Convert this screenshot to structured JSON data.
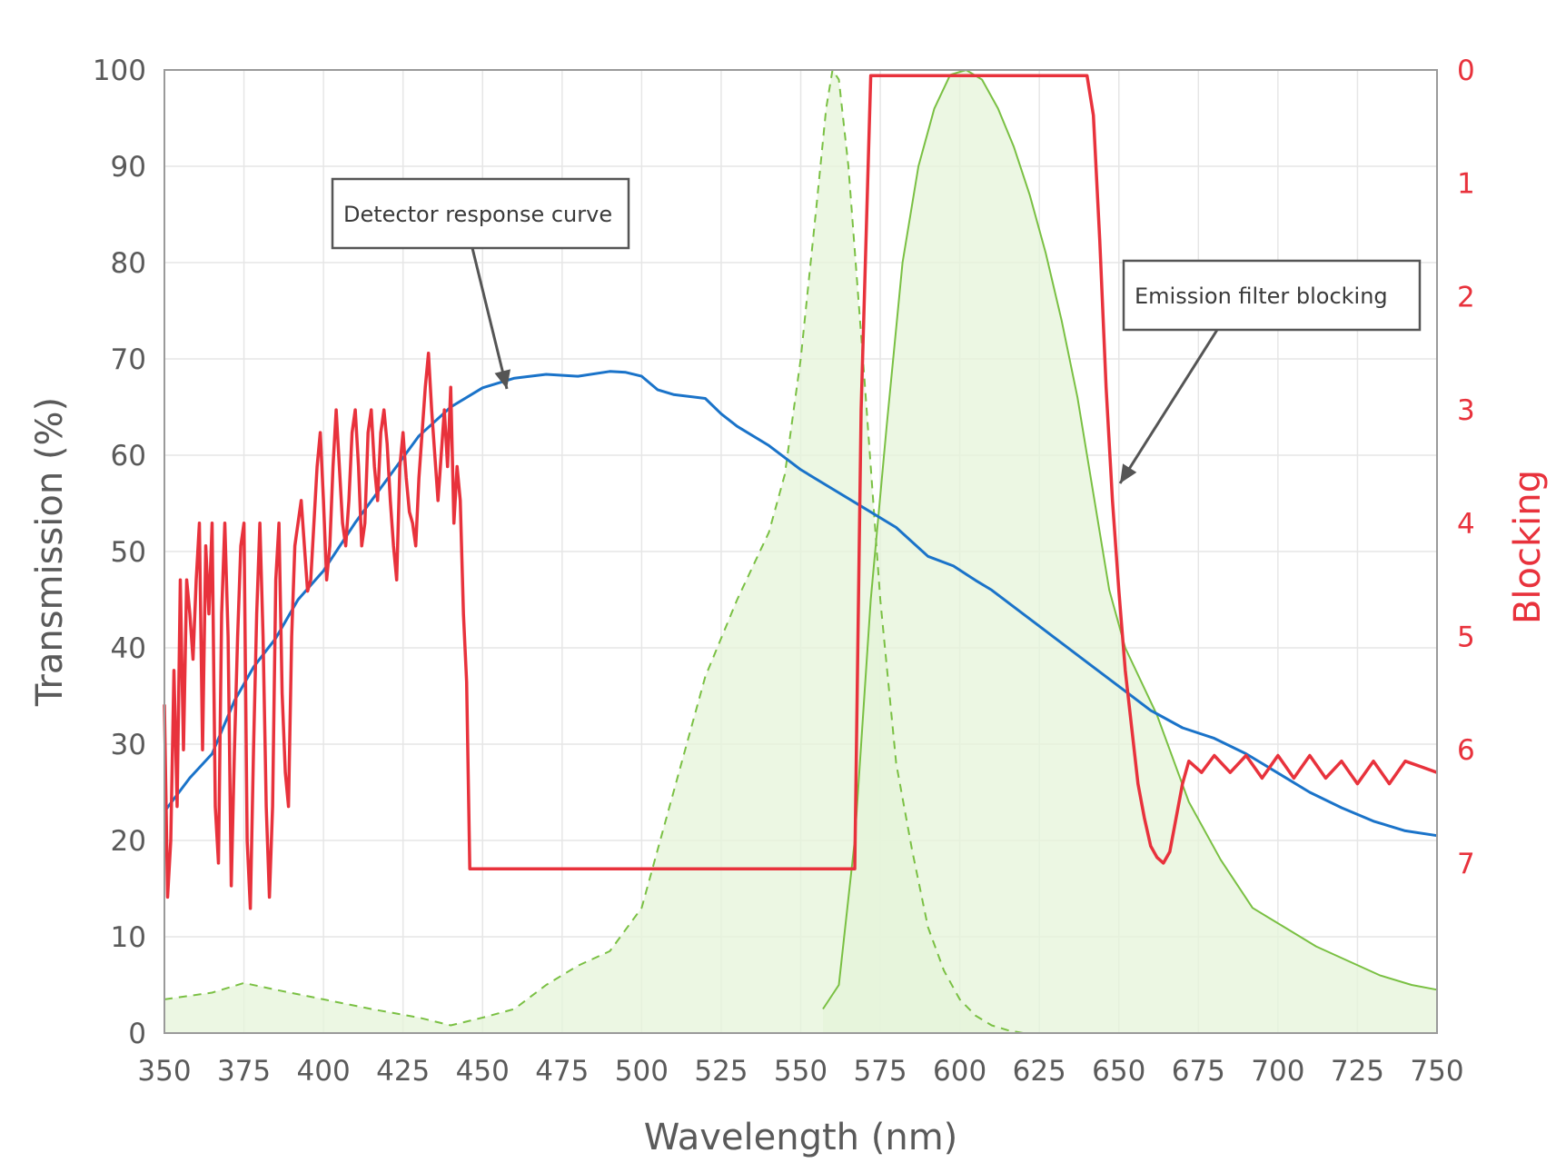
{
  "chart_data": {
    "type": "line",
    "xlabel": "Wavelength (nm)",
    "ylabel": "Transmission (%)",
    "y2label": "Blocking",
    "xlim": [
      350,
      750
    ],
    "ylim": [
      0,
      100
    ],
    "y2lim": [
      0,
      8.5
    ],
    "y2_inverted": true,
    "x_ticks": [
      "350",
      "375",
      "400",
      "425",
      "450",
      "475",
      "500",
      "525",
      "550",
      "575",
      "600",
      "625",
      "650",
      "675",
      "700",
      "725",
      "750"
    ],
    "y_ticks": [
      "0",
      "10",
      "20",
      "30",
      "40",
      "50",
      "60",
      "70",
      "80",
      "90",
      "100"
    ],
    "y2_ticks": [
      "0",
      "1",
      "2",
      "3",
      "4",
      "5",
      "6",
      "7"
    ],
    "grid": true,
    "series": [
      {
        "id": "excitation",
        "color": "#7ac043",
        "style": "dashed",
        "fill": "#e6f4d9",
        "axis": "left",
        "x": [
          350,
          365,
          375,
          385,
          400,
          415,
          430,
          440,
          450,
          460,
          470,
          480,
          490,
          500,
          510,
          520,
          530,
          540,
          545,
          550,
          555,
          558,
          560,
          562,
          565,
          570,
          575,
          580,
          585,
          590,
          595,
          600,
          605,
          610,
          615,
          620
        ],
        "y": [
          3.5,
          4.2,
          5.2,
          4.5,
          3.5,
          2.5,
          1.6,
          0.8,
          1.6,
          2.5,
          5,
          7,
          8.5,
          13,
          25,
          37,
          45,
          52,
          58,
          70,
          86,
          96,
          100,
          99,
          90,
          68,
          45,
          28,
          19,
          11,
          6.5,
          3.5,
          1.8,
          0.8,
          0.3,
          0
        ]
      },
      {
        "id": "emission",
        "color": "#7ac043",
        "style": "solid",
        "fill": "#e6f4d9",
        "axis": "left",
        "x": [
          557,
          562,
          567,
          572,
          577,
          582,
          587,
          592,
          597,
          602,
          607,
          612,
          617,
          622,
          627,
          632,
          637,
          642,
          647,
          652,
          662,
          672,
          682,
          692,
          702,
          712,
          722,
          732,
          742,
          750
        ],
        "y": [
          2.5,
          5,
          20,
          45,
          63,
          80,
          90,
          96,
          99.5,
          100,
          99,
          96,
          92,
          87,
          81,
          74,
          66,
          56,
          46,
          40,
          33,
          24,
          18,
          13,
          11,
          9,
          7.5,
          6,
          5,
          4.5
        ]
      },
      {
        "id": "detector-response",
        "name": "Detector response curve",
        "color": "#1a73c9",
        "style": "solid",
        "axis": "left",
        "x": [
          350,
          358,
          365,
          372,
          378,
          385,
          392,
          400,
          410,
          420,
          430,
          440,
          450,
          460,
          470,
          480,
          490,
          495,
          500,
          505,
          510,
          520,
          525,
          530,
          540,
          550,
          560,
          570,
          580,
          590,
          598,
          605,
          610,
          620,
          630,
          640,
          650,
          660,
          670,
          680,
          690,
          700,
          710,
          720,
          730,
          740,
          750
        ],
        "y": [
          23,
          26.5,
          29,
          34.5,
          38,
          41,
          45,
          48,
          53,
          57.5,
          62,
          65,
          67,
          68,
          68.4,
          68.2,
          68.7,
          68.6,
          68.2,
          66.8,
          66.3,
          65.9,
          64.3,
          63,
          61,
          58.5,
          56.5,
          54.5,
          52.5,
          49.5,
          48.5,
          47,
          46,
          43.5,
          41,
          38.5,
          36,
          33.5,
          31.7,
          30.6,
          29,
          27,
          25,
          23.4,
          22,
          21,
          20.5
        ]
      },
      {
        "id": "emission-filter-blocking",
        "name": "Emission filter blocking",
        "color": "#e8323c",
        "style": "solid",
        "axis": "right",
        "x": [
          350,
          351,
          352,
          353,
          354,
          355,
          356,
          357,
          358,
          359,
          360,
          361,
          362,
          363,
          364,
          365,
          366,
          367,
          368,
          369,
          370,
          371,
          372,
          373,
          374,
          375,
          376,
          377,
          378,
          379,
          380,
          381,
          382,
          383,
          384,
          385,
          386,
          387,
          388,
          389,
          390,
          391,
          392,
          393,
          394,
          395,
          396,
          397,
          398,
          399,
          400,
          401,
          402,
          403,
          404,
          405,
          406,
          407,
          408,
          409,
          410,
          411,
          412,
          413,
          414,
          415,
          416,
          417,
          418,
          419,
          420,
          421,
          422,
          423,
          424,
          425,
          426,
          427,
          428,
          429,
          430,
          431,
          432,
          433,
          434,
          435,
          436,
          437,
          438,
          439,
          440,
          441,
          442,
          443,
          444,
          445,
          446,
          450,
          500,
          550,
          567,
          569,
          572,
          573,
          580,
          600,
          620,
          640,
          642,
          644,
          646,
          648,
          650,
          652,
          654,
          656,
          658,
          660,
          662,
          664,
          666,
          668,
          670,
          672,
          674,
          676,
          680,
          685,
          690,
          695,
          700,
          705,
          710,
          715,
          720,
          725,
          730,
          735,
          740,
          745,
          750
        ],
        "y": [
          5.6,
          7.3,
          6.8,
          5.3,
          6.5,
          4.5,
          6,
          4.5,
          4.8,
          5.2,
          4.5,
          4.0,
          6.0,
          4.2,
          4.8,
          4.0,
          6.5,
          7.0,
          4.8,
          4.0,
          5.0,
          7.2,
          6.0,
          5.0,
          4.2,
          4.0,
          6.8,
          7.4,
          6.0,
          4.8,
          4.0,
          5.0,
          6.5,
          7.3,
          6.5,
          4.5,
          4.0,
          5.5,
          6.2,
          6.5,
          5.0,
          4.2,
          4.0,
          3.8,
          4.2,
          4.6,
          4.5,
          4.0,
          3.5,
          3.2,
          3.8,
          4.5,
          4.2,
          3.5,
          3.0,
          3.5,
          4.0,
          4.2,
          3.8,
          3.2,
          3.0,
          3.5,
          4.2,
          4.0,
          3.2,
          3.0,
          3.5,
          3.8,
          3.2,
          3.0,
          3.3,
          3.8,
          4.2,
          4.5,
          3.5,
          3.2,
          3.6,
          3.9,
          4.0,
          4.2,
          3.6,
          3.2,
          2.8,
          2.5,
          3.0,
          3.4,
          3.8,
          3.4,
          3.0,
          3.5,
          2.8,
          4.0,
          3.5,
          3.8,
          4.8,
          5.4,
          7.05,
          7.05,
          7.05,
          7.05,
          7.05,
          3.0,
          0.05,
          0.05,
          0.05,
          0.05,
          0.05,
          0.05,
          0.4,
          1.5,
          2.8,
          3.8,
          4.6,
          5.3,
          5.8,
          6.3,
          6.6,
          6.85,
          6.95,
          7.0,
          6.9,
          6.6,
          6.3,
          6.1,
          6.15,
          6.2,
          6.05,
          6.2,
          6.05,
          6.25,
          6.05,
          6.25,
          6.05,
          6.25,
          6.1,
          6.3,
          6.1,
          6.3,
          6.1,
          6.15,
          6.2
        ]
      }
    ],
    "annotations": [
      {
        "text": "Detector response curve",
        "target": "detector-response"
      },
      {
        "text": "Emission filter blocking",
        "target": "emission-filter-blocking"
      }
    ]
  }
}
